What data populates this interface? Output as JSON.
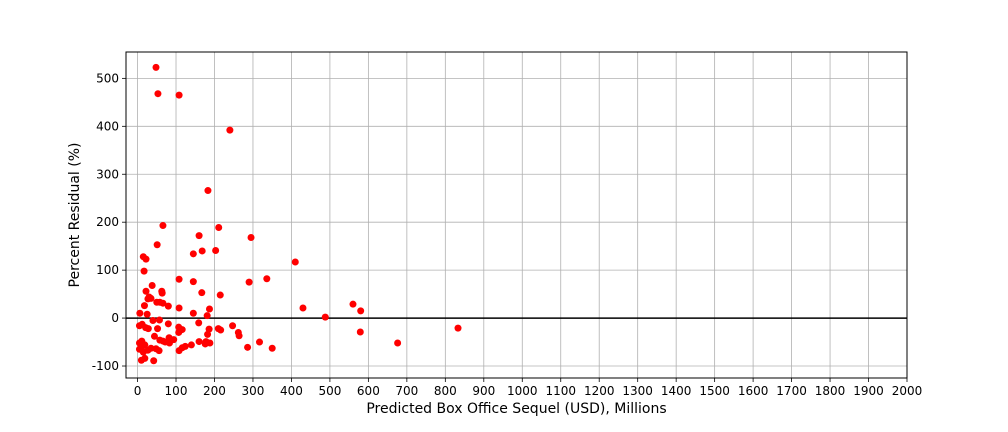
{
  "chart_data": {
    "type": "scatter",
    "title": "",
    "xlabel": "Predicted Box Office Sequel (USD), Millions",
    "ylabel": "Percent Residual (%)",
    "xlim": [
      -30,
      2000
    ],
    "ylim": [
      -125,
      555
    ],
    "xticks": [
      0,
      100,
      200,
      300,
      400,
      500,
      600,
      700,
      800,
      900,
      1000,
      1100,
      1200,
      1300,
      1400,
      1500,
      1600,
      1700,
      1800,
      1900,
      2000
    ],
    "yticks": [
      -100,
      0,
      100,
      200,
      300,
      400,
      500
    ],
    "grid": true,
    "reference_line": {
      "y": 0,
      "color": "#000000"
    },
    "marker_color": "#ff0000",
    "series": [
      {
        "points": [
          [
            48,
            523
          ],
          [
            53,
            468
          ],
          [
            108,
            465
          ],
          [
            240,
            392
          ],
          [
            183,
            266
          ],
          [
            66,
            193
          ],
          [
            211,
            189
          ],
          [
            295,
            168
          ],
          [
            160,
            172
          ],
          [
            51,
            153
          ],
          [
            168,
            140
          ],
          [
            203,
            141
          ],
          [
            15,
            128
          ],
          [
            22,
            123
          ],
          [
            145,
            134
          ],
          [
            17,
            98
          ],
          [
            410,
            117
          ],
          [
            108,
            81
          ],
          [
            336,
            82
          ],
          [
            145,
            76
          ],
          [
            290,
            75
          ],
          [
            38,
            68
          ],
          [
            22,
            56
          ],
          [
            167,
            53
          ],
          [
            63,
            56
          ],
          [
            64,
            52
          ],
          [
            215,
            48
          ],
          [
            30,
            44
          ],
          [
            35,
            41
          ],
          [
            27,
            40
          ],
          [
            50,
            33
          ],
          [
            58,
            33
          ],
          [
            66,
            31
          ],
          [
            18,
            26
          ],
          [
            80,
            25
          ],
          [
            430,
            21
          ],
          [
            108,
            21
          ],
          [
            187,
            19
          ],
          [
            560,
            29
          ],
          [
            580,
            15
          ],
          [
            145,
            10
          ],
          [
            6,
            10
          ],
          [
            25,
            8
          ],
          [
            181,
            5
          ],
          [
            488,
            2
          ],
          [
            40,
            -5
          ],
          [
            57,
            -4
          ],
          [
            12,
            -13
          ],
          [
            80,
            -12
          ],
          [
            159,
            -10
          ],
          [
            5,
            -16
          ],
          [
            21,
            -20
          ],
          [
            28,
            -22
          ],
          [
            247,
            -16
          ],
          [
            107,
            -19
          ],
          [
            116,
            -24
          ],
          [
            186,
            -23
          ],
          [
            210,
            -22
          ],
          [
            216,
            -25
          ],
          [
            52,
            -22
          ],
          [
            107,
            -30
          ],
          [
            182,
            -34
          ],
          [
            579,
            -29
          ],
          [
            262,
            -30
          ],
          [
            833,
            -21
          ],
          [
            264,
            -37
          ],
          [
            44,
            -38
          ],
          [
            58,
            -46
          ],
          [
            82,
            -41
          ],
          [
            94,
            -45
          ],
          [
            66,
            -48
          ],
          [
            72,
            -50
          ],
          [
            83,
            -52
          ],
          [
            160,
            -49
          ],
          [
            178,
            -49
          ],
          [
            188,
            -52
          ],
          [
            176,
            -54
          ],
          [
            140,
            -56
          ],
          [
            676,
            -52
          ],
          [
            317,
            -50
          ],
          [
            5,
            -52
          ],
          [
            11,
            -48
          ],
          [
            19,
            -56
          ],
          [
            35,
            -63
          ],
          [
            10,
            -63
          ],
          [
            5,
            -65
          ],
          [
            27,
            -67
          ],
          [
            15,
            -71
          ],
          [
            48,
            -64
          ],
          [
            56,
            -68
          ],
          [
            108,
            -68
          ],
          [
            116,
            -62
          ],
          [
            124,
            -59
          ],
          [
            286,
            -61
          ],
          [
            350,
            -63
          ],
          [
            10,
            -88
          ],
          [
            19,
            -84
          ],
          [
            42,
            -89
          ]
        ]
      }
    ]
  }
}
